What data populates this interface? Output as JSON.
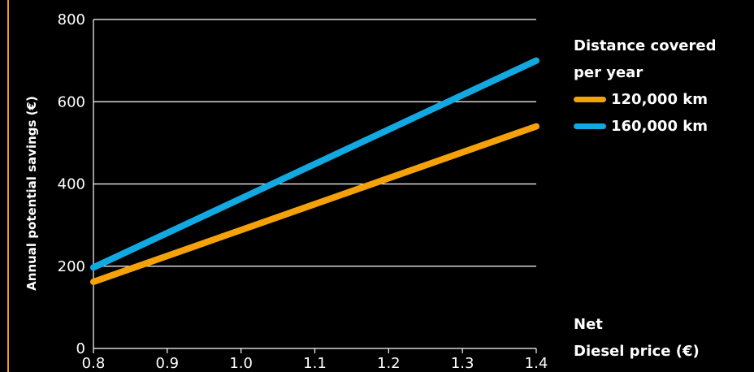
{
  "chart_data": {
    "type": "line",
    "title": "",
    "xlabel": "Diesel price (€)",
    "xlabel_prefix": "Net",
    "ylabel": "Annual potential savings (€)",
    "xlim": [
      0.8,
      1.4
    ],
    "ylim": [
      0,
      800
    ],
    "xticks": [
      "0.8",
      "0.9",
      "1.0",
      "1.1",
      "1.2",
      "1.3",
      "1.4"
    ],
    "yticks": [
      "0",
      "200",
      "400",
      "600",
      "800"
    ],
    "grid": "horizontal",
    "legend_title_line1": "Distance covered",
    "legend_title_line2": "per year",
    "legend_position": "right",
    "series": [
      {
        "name": "120,000 km",
        "color": "#f5a20a",
        "x": [
          0.8,
          1.4
        ],
        "values": [
          162,
          540
        ]
      },
      {
        "name": "160,000 km",
        "color": "#12a9e2",
        "x": [
          0.8,
          1.4
        ],
        "values": [
          197,
          700
        ]
      }
    ]
  }
}
